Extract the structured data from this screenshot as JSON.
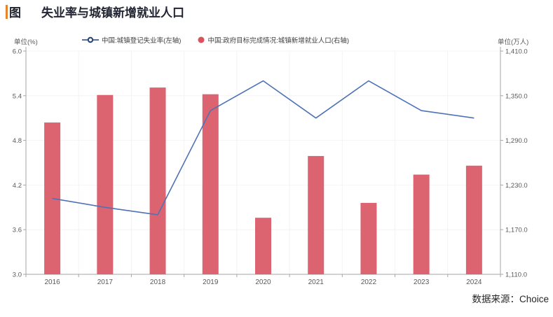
{
  "header": {
    "badge": "图",
    "title": "失业率与城镇新增就业人口",
    "accent_color": "#E8832A"
  },
  "legend": [
    {
      "label": "中国:城镇登记失业率(左轴)",
      "marker": "line-circle-icon",
      "color": "#24427C"
    },
    {
      "label": "中国:政府目标完成情况:城镇新增就业人口(右轴)",
      "marker": "dot-icon",
      "color": "#D9535F"
    }
  ],
  "chart_data": {
    "type": "bar+line combo, dual axis",
    "categories": [
      "2016",
      "2017",
      "2018",
      "2019",
      "2020",
      "2021",
      "2022",
      "2023",
      "2024"
    ],
    "series": [
      {
        "name": "中国:城镇登记失业率(左轴)",
        "type": "line",
        "axis": "left",
        "color": "#4E72B8",
        "values": [
          4.02,
          3.9,
          3.8,
          5.2,
          5.6,
          5.1,
          5.6,
          5.2,
          5.1
        ]
      },
      {
        "name": "中国:政府目标完成情况:城镇新增就业人口(右轴)",
        "type": "bar",
        "axis": "right",
        "color": "#DC6470",
        "values": [
          1314,
          1351,
          1361,
          1352,
          1186,
          1269,
          1206,
          1244,
          1256
        ]
      }
    ],
    "left_axis": {
      "unit": "单位(%)",
      "min": 3.0,
      "max": 6.0,
      "ticks": [
        "6.0",
        "5.4",
        "4.8",
        "4.2",
        "3.6",
        "3.0"
      ]
    },
    "right_axis": {
      "unit": "单位(万人)",
      "min": 1110,
      "max": 1410,
      "ticks": [
        "1,410.0",
        "1,350.0",
        "1,290.0",
        "1,230.0",
        "1,170.0",
        "1,110.0"
      ]
    },
    "legend_position": "top",
    "grid": "faint horizontal and vertical gridlines",
    "axis_color": "#a6a6a6",
    "tick_label_color": "#595959"
  },
  "footer": {
    "source": "数据来源：Choice"
  }
}
